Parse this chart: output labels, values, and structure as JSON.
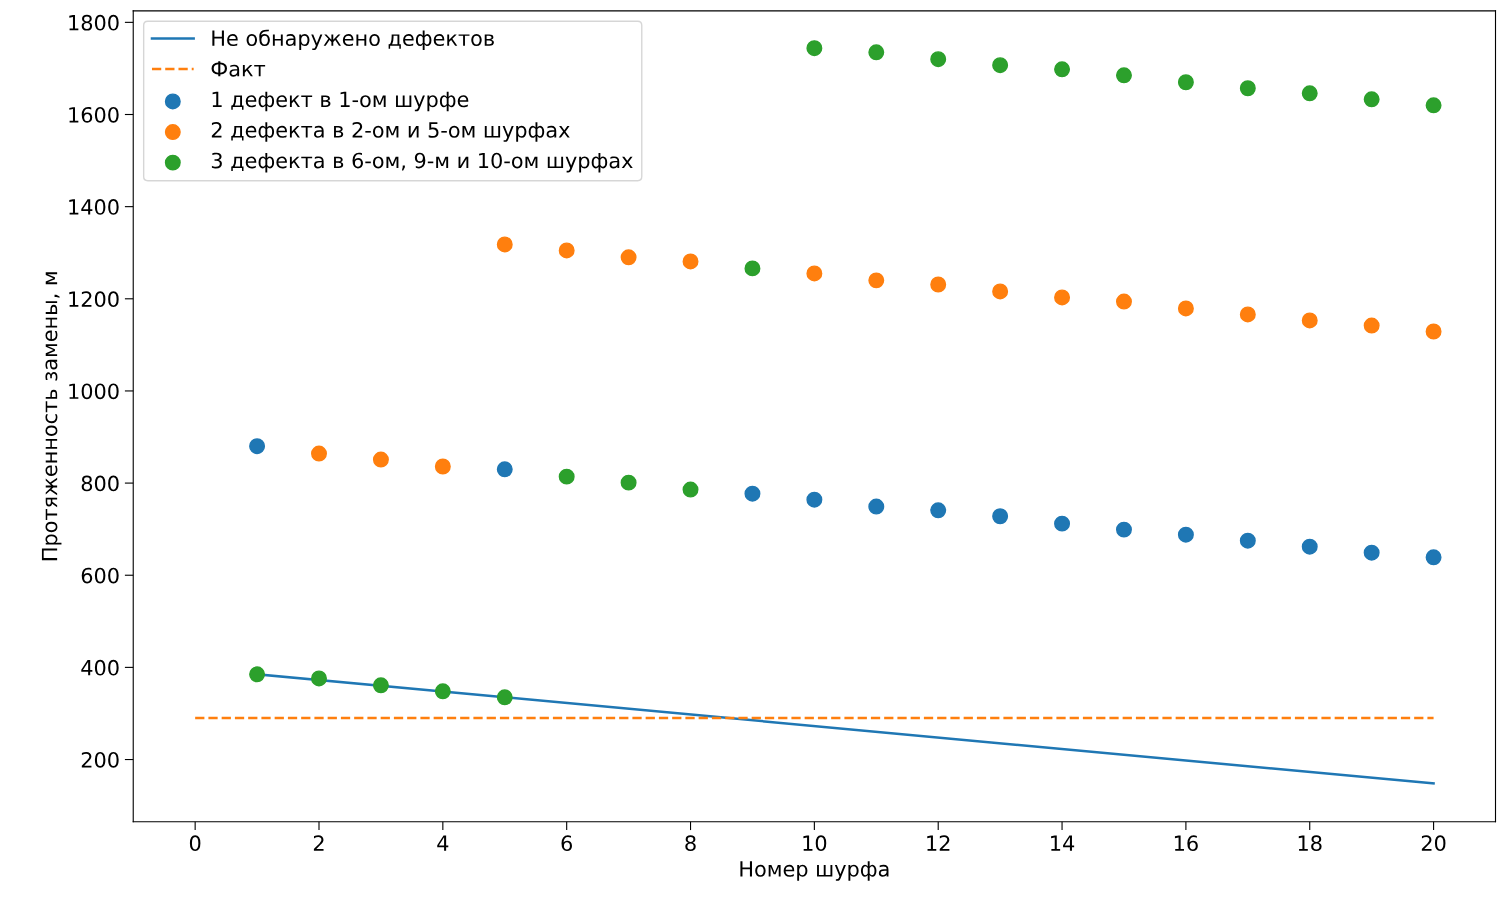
{
  "chart_data": {
    "type": "line",
    "xlabel": "Номер шурфа",
    "ylabel": "Протяженность замены, м",
    "xlim": [
      -1,
      21
    ],
    "xticks": [
      0,
      2,
      4,
      6,
      8,
      10,
      12,
      14,
      16,
      18,
      20
    ],
    "ylim": [
      65,
      1825
    ],
    "yticks": [
      200,
      400,
      600,
      800,
      1000,
      1200,
      1400,
      1600,
      1800
    ],
    "grid": false,
    "legend": "top left",
    "series": [
      {
        "name": "Не обнаружено дефектов",
        "type": "line",
        "color": "#1f77b4",
        "line_style": "solid",
        "x": [
          1,
          20
        ],
        "values": [
          385,
          148
        ]
      },
      {
        "name": "Факт",
        "type": "line",
        "color": "#ff7f0e",
        "line_style": "dashed",
        "x": [
          0,
          20
        ],
        "values": [
          290,
          290
        ]
      },
      {
        "name": "1 дефект в 1-ом шурфе",
        "type": "scatter",
        "color": "#1f77b4",
        "marker": "circle",
        "x": [
          1,
          5,
          9,
          10,
          11,
          12,
          13,
          14,
          15,
          16,
          17,
          18,
          19,
          20
        ],
        "values": [
          880,
          830,
          777,
          764,
          749,
          741,
          728,
          712,
          699,
          688,
          675,
          662,
          649,
          639
        ]
      },
      {
        "name": "2 дефекта в 2-ом и 5-ом шурфах",
        "type": "scatter",
        "color": "#ff7f0e",
        "marker": "circle",
        "x": [
          2,
          3,
          4,
          5,
          6,
          7,
          8,
          10,
          11,
          12,
          13,
          14,
          15,
          16,
          17,
          18,
          19,
          20
        ],
        "values": [
          864,
          851,
          836,
          1318,
          1305,
          1290,
          1281,
          1255,
          1240,
          1231,
          1216,
          1203,
          1194,
          1179,
          1166,
          1153,
          1142,
          1129
        ]
      },
      {
        "name": "3 дефекта в 6-ом, 9-м и 10-ом шурфах",
        "type": "scatter",
        "color": "#2ca02c",
        "marker": "circle",
        "x": [
          1,
          2,
          3,
          4,
          5,
          6,
          7,
          8,
          9,
          10,
          11,
          12,
          13,
          14,
          15,
          16,
          17,
          18,
          19,
          20
        ],
        "values": [
          385,
          376,
          361,
          348,
          335,
          814,
          801,
          786,
          1266,
          1744,
          1735,
          1720,
          1707,
          1698,
          1685,
          1670,
          1657,
          1646,
          1633,
          1620
        ]
      }
    ]
  }
}
